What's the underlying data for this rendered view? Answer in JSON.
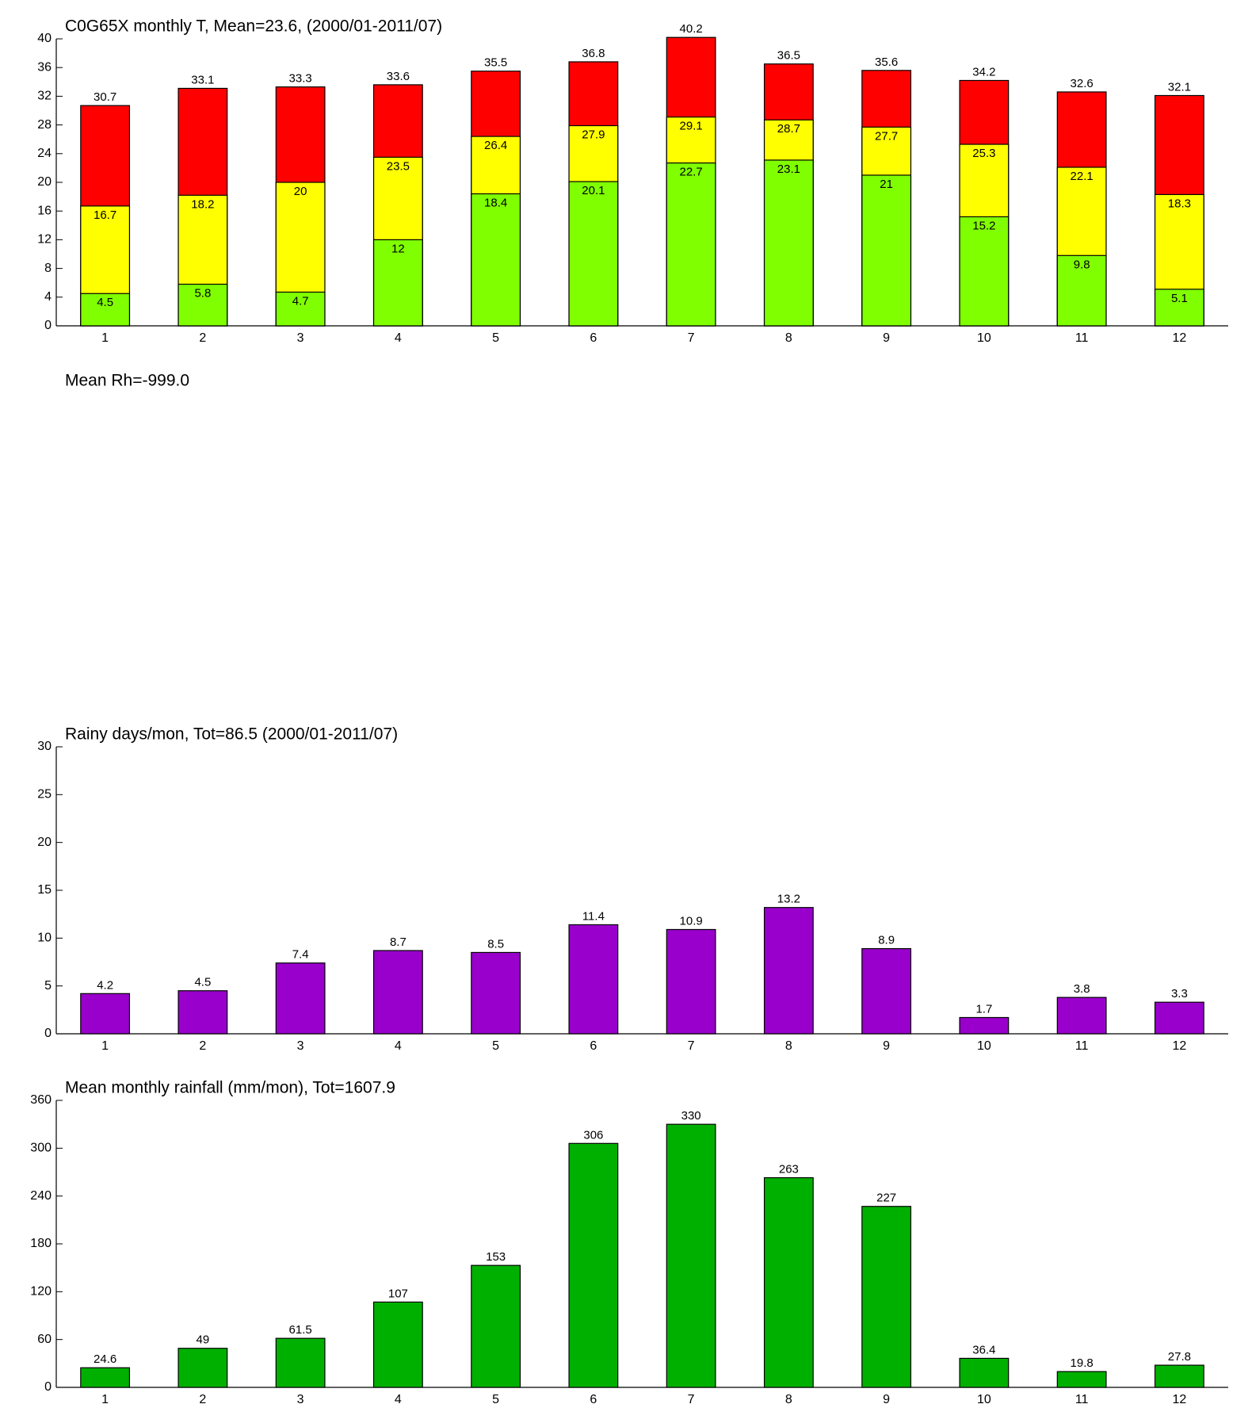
{
  "chart_data": [
    {
      "type": "bar",
      "title": "C0G65X monthly T, Mean=23.6, (2000/01-2011/07)",
      "categories": [
        "1",
        "2",
        "3",
        "4",
        "5",
        "6",
        "7",
        "8",
        "9",
        "10",
        "11",
        "12"
      ],
      "series": [
        {
          "color": "#ff0000",
          "values": [
            30.7,
            33.1,
            33.3,
            33.6,
            35.5,
            36.8,
            40.2,
            36.5,
            35.6,
            34.2,
            32.6,
            32.1
          ]
        },
        {
          "color": "#ffff00",
          "values": [
            16.7,
            18.2,
            20,
            23.5,
            26.4,
            27.9,
            29.1,
            28.7,
            27.7,
            25.3,
            22.1,
            18.3
          ]
        },
        {
          "color": "#80ff00",
          "values": [
            4.5,
            5.8,
            4.7,
            12,
            18.4,
            20.1,
            22.7,
            23.1,
            21,
            15.2,
            9.8,
            5.1
          ]
        }
      ],
      "ylim": [
        0,
        40
      ],
      "yticks": [
        0,
        4,
        8,
        12,
        16,
        20,
        24,
        28,
        32,
        36,
        40
      ]
    },
    {
      "type": "blank",
      "title": "Mean Rh=-999.0"
    },
    {
      "type": "bar",
      "title": "Rainy days/mon, Tot=86.5 (2000/01-2011/07)",
      "categories": [
        "1",
        "2",
        "3",
        "4",
        "5",
        "6",
        "7",
        "8",
        "9",
        "10",
        "11",
        "12"
      ],
      "series": [
        {
          "color": "#9900cc",
          "values": [
            4.2,
            4.5,
            7.4,
            8.7,
            8.5,
            11.4,
            10.9,
            13.2,
            8.9,
            1.7,
            3.8,
            3.3
          ]
        }
      ],
      "ylim": [
        0,
        30
      ],
      "yticks": [
        0,
        5,
        10,
        15,
        20,
        25,
        30
      ]
    },
    {
      "type": "bar",
      "title": "Mean monthly rainfall (mm/mon), Tot=1607.9",
      "categories": [
        "1",
        "2",
        "3",
        "4",
        "5",
        "6",
        "7",
        "8",
        "9",
        "10",
        "11",
        "12"
      ],
      "series": [
        {
          "color": "#00b000",
          "values": [
            24.6,
            49,
            61.5,
            107,
            153,
            306,
            330,
            263,
            227,
            36.4,
            19.8,
            27.8
          ]
        }
      ],
      "ylim": [
        0,
        360
      ],
      "yticks": [
        0,
        60,
        120,
        180,
        240,
        300,
        360
      ]
    }
  ]
}
